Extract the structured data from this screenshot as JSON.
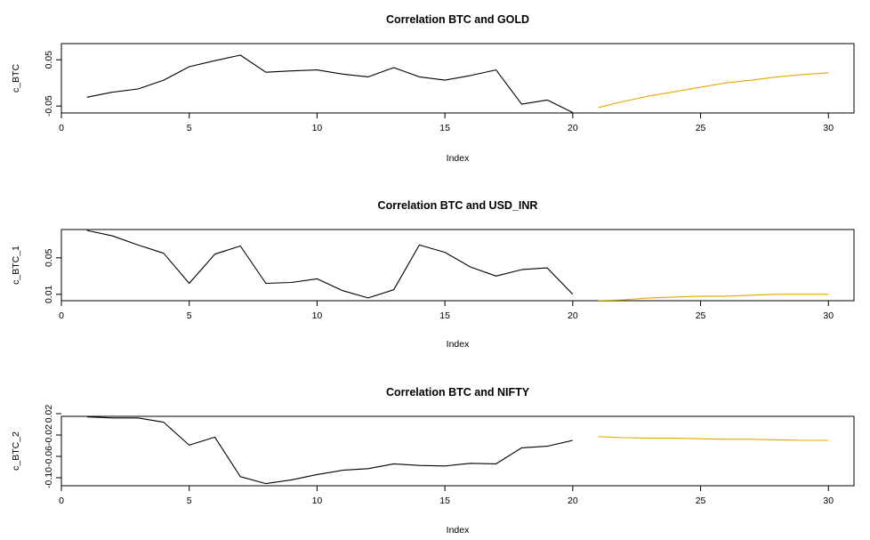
{
  "colors": {
    "observed": "#000000",
    "forecast": "#E6A800",
    "axis": "#000000"
  },
  "chart_data": [
    {
      "type": "line",
      "title": "Correlation BTC and GOLD",
      "xlabel": "Index",
      "ylabel": "c_BTC",
      "xlim": [
        0,
        31
      ],
      "ylim": [
        -0.065,
        0.085
      ],
      "xticks": [
        0,
        5,
        10,
        15,
        20,
        25,
        30
      ],
      "yticks": [
        -0.05,
        0.05
      ],
      "ytick_labels": [
        "-0.05",
        "0.05"
      ],
      "series": [
        {
          "x": [
            1,
            2,
            3,
            4,
            5,
            6,
            7,
            8,
            9,
            10,
            11,
            12,
            13,
            14,
            15,
            16,
            17,
            18,
            19,
            20
          ],
          "values": [
            -0.031,
            -0.02,
            -0.013,
            0.006,
            0.035,
            0.048,
            0.06,
            0.023,
            0.026,
            0.028,
            0.019,
            0.013,
            0.033,
            0.013,
            0.006,
            0.016,
            0.028,
            -0.046,
            -0.037,
            -0.064
          ],
          "color": "#000000"
        },
        {
          "x": [
            21,
            22,
            23,
            24,
            25,
            26,
            27,
            28,
            29,
            30
          ],
          "values": [
            -0.053,
            -0.04,
            -0.028,
            -0.019,
            -0.009,
            0.0,
            0.006,
            0.013,
            0.018,
            0.022
          ],
          "color": "#E6A800"
        }
      ]
    },
    {
      "type": "line",
      "title": "Correlation BTC and USD_INR",
      "xlabel": "Index",
      "ylabel": "c_BTC_1",
      "xlim": [
        0,
        31
      ],
      "ylim": [
        0.003,
        0.081
      ],
      "xticks": [
        0,
        5,
        10,
        15,
        20,
        25,
        30
      ],
      "yticks": [
        0.01,
        0.05
      ],
      "ytick_labels": [
        "0.01",
        "0.05"
      ],
      "series": [
        {
          "x": [
            1,
            2,
            3,
            4,
            5,
            6,
            7,
            8,
            9,
            10,
            11,
            12,
            13,
            14,
            15,
            16,
            17,
            18,
            19,
            20
          ],
          "values": [
            0.08,
            0.074,
            0.064,
            0.055,
            0.022,
            0.054,
            0.063,
            0.022,
            0.023,
            0.027,
            0.014,
            0.006,
            0.015,
            0.064,
            0.056,
            0.04,
            0.03,
            0.037,
            0.039,
            0.01
          ],
          "color": "#000000"
        },
        {
          "x": [
            21,
            22,
            23,
            24,
            25,
            26,
            27,
            28,
            29,
            30
          ],
          "values": [
            0.003,
            0.004,
            0.006,
            0.007,
            0.008,
            0.008,
            0.009,
            0.01,
            0.01,
            0.01
          ],
          "color": "#E6A800"
        }
      ]
    },
    {
      "type": "line",
      "title": "Correlation BTC and NIFTY",
      "xlabel": "Index",
      "ylabel": "c_BTC_2",
      "xlim": [
        0,
        31
      ],
      "ylim": [
        -0.115,
        0.015
      ],
      "xticks": [
        0,
        5,
        10,
        15,
        20,
        25,
        30
      ],
      "yticks": [
        -0.1,
        -0.06,
        -0.02,
        0.02
      ],
      "ytick_labels": [
        "-0.10",
        "-0.06",
        "-0.02",
        "0.02"
      ],
      "series": [
        {
          "x": [
            1,
            2,
            3,
            4,
            5,
            6,
            7,
            8,
            9,
            10,
            11,
            12,
            13,
            14,
            15,
            16,
            17,
            18,
            19,
            20
          ],
          "values": [
            0.014,
            0.012,
            0.012,
            0.004,
            -0.039,
            -0.024,
            -0.098,
            -0.111,
            -0.104,
            -0.094,
            -0.086,
            -0.083,
            -0.074,
            -0.077,
            -0.078,
            -0.073,
            -0.074,
            -0.044,
            -0.041,
            -0.03
          ],
          "color": "#000000"
        },
        {
          "x": [
            21,
            22,
            23,
            24,
            25,
            26,
            27,
            28,
            29,
            30
          ],
          "values": [
            -0.023,
            -0.025,
            -0.026,
            -0.026,
            -0.027,
            -0.028,
            -0.028,
            -0.029,
            -0.03,
            -0.03
          ],
          "color": "#E6A800"
        }
      ]
    }
  ]
}
